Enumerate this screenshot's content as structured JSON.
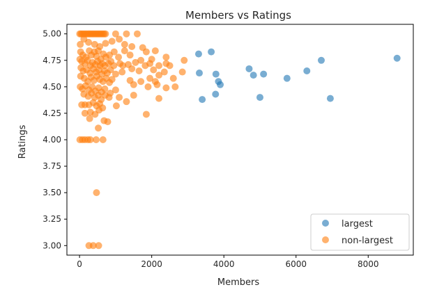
{
  "chart_data": {
    "type": "scatter",
    "title": "Members vs Ratings",
    "xlabel": "Members",
    "ylabel": "Ratings",
    "xlim": [
      -350,
      9250
    ],
    "ylim": [
      2.91,
      5.09
    ],
    "xticks": [
      0,
      2000,
      4000,
      6000,
      8000
    ],
    "xtick_labels": [
      "0",
      "2000",
      "4000",
      "6000",
      "8000"
    ],
    "yticks": [
      3.0,
      3.25,
      3.5,
      3.75,
      4.0,
      4.25,
      4.5,
      4.75,
      5.0
    ],
    "ytick_labels": [
      "3.00",
      "3.25",
      "3.50",
      "3.75",
      "4.00",
      "4.25",
      "4.50",
      "4.75",
      "5.00"
    ],
    "grid": false,
    "legend_position": "lower-right",
    "series": [
      {
        "name": "largest",
        "color": "#1f77b4",
        "alpha": 0.6,
        "points": [
          [
            3300,
            4.81
          ],
          [
            3320,
            4.63
          ],
          [
            3400,
            4.38
          ],
          [
            3650,
            4.83
          ],
          [
            3780,
            4.62
          ],
          [
            3770,
            4.43
          ],
          [
            3850,
            4.55
          ],
          [
            3900,
            4.52
          ],
          [
            4700,
            4.67
          ],
          [
            4820,
            4.61
          ],
          [
            5000,
            4.4
          ],
          [
            5100,
            4.62
          ],
          [
            5750,
            4.58
          ],
          [
            6300,
            4.65
          ],
          [
            6700,
            4.75
          ],
          [
            6950,
            4.39
          ],
          [
            8800,
            4.77
          ]
        ]
      },
      {
        "name": "non-largest",
        "color": "#ff7f0e",
        "alpha": 0.6,
        "points": [
          [
            5,
            5.0
          ],
          [
            40,
            5.0
          ],
          [
            80,
            5.0
          ],
          [
            120,
            5.0
          ],
          [
            160,
            5.0
          ],
          [
            200,
            5.0
          ],
          [
            240,
            5.0
          ],
          [
            280,
            5.0
          ],
          [
            320,
            5.0
          ],
          [
            360,
            5.0
          ],
          [
            400,
            5.0
          ],
          [
            440,
            5.0
          ],
          [
            480,
            5.0
          ],
          [
            520,
            5.0
          ],
          [
            560,
            5.0
          ],
          [
            600,
            5.0
          ],
          [
            640,
            5.0
          ],
          [
            680,
            5.0
          ],
          [
            720,
            5.0
          ],
          [
            1000,
            5.0
          ],
          [
            1300,
            5.0
          ],
          [
            1600,
            5.0
          ],
          [
            20,
            4.9
          ],
          [
            120,
            4.95
          ],
          [
            250,
            4.92
          ],
          [
            420,
            4.9
          ],
          [
            560,
            4.88
          ],
          [
            720,
            4.91
          ],
          [
            900,
            4.93
          ],
          [
            1100,
            4.95
          ],
          [
            1250,
            4.9
          ],
          [
            1450,
            4.88
          ],
          [
            1750,
            4.87
          ],
          [
            1850,
            4.83
          ],
          [
            2100,
            4.84
          ],
          [
            1250,
            4.84
          ],
          [
            30,
            4.83
          ],
          [
            90,
            4.8
          ],
          [
            180,
            4.78
          ],
          [
            270,
            4.84
          ],
          [
            330,
            4.8
          ],
          [
            410,
            4.83
          ],
          [
            470,
            4.79
          ],
          [
            520,
            4.84
          ],
          [
            590,
            4.76
          ],
          [
            660,
            4.81
          ],
          [
            730,
            4.78
          ],
          [
            830,
            4.8
          ],
          [
            960,
            4.83
          ],
          [
            1080,
            4.78
          ],
          [
            1400,
            4.8
          ],
          [
            1700,
            4.75
          ],
          [
            2000,
            4.76
          ],
          [
            2400,
            4.78
          ],
          [
            2900,
            4.75
          ],
          [
            10,
            4.76
          ],
          [
            60,
            4.74
          ],
          [
            150,
            4.72
          ],
          [
            220,
            4.75
          ],
          [
            300,
            4.7
          ],
          [
            360,
            4.73
          ],
          [
            440,
            4.71
          ],
          [
            500,
            4.74
          ],
          [
            570,
            4.7
          ],
          [
            630,
            4.72
          ],
          [
            700,
            4.7
          ],
          [
            800,
            4.72
          ],
          [
            870,
            4.74
          ],
          [
            950,
            4.7
          ],
          [
            1120,
            4.72
          ],
          [
            1200,
            4.7
          ],
          [
            1350,
            4.71
          ],
          [
            1550,
            4.73
          ],
          [
            1820,
            4.7
          ],
          [
            1950,
            4.72
          ],
          [
            2200,
            4.7
          ],
          [
            2400,
            4.72
          ],
          [
            2500,
            4.7
          ],
          [
            40,
            4.68
          ],
          [
            100,
            4.65
          ],
          [
            200,
            4.66
          ],
          [
            290,
            4.63
          ],
          [
            380,
            4.67
          ],
          [
            460,
            4.64
          ],
          [
            540,
            4.66
          ],
          [
            620,
            4.62
          ],
          [
            690,
            4.65
          ],
          [
            770,
            4.63
          ],
          [
            860,
            4.66
          ],
          [
            1000,
            4.62
          ],
          [
            1180,
            4.64
          ],
          [
            1450,
            4.67
          ],
          [
            1650,
            4.65
          ],
          [
            2050,
            4.66
          ],
          [
            2200,
            4.61
          ],
          [
            2350,
            4.64
          ],
          [
            2850,
            4.64
          ],
          [
            30,
            4.6
          ],
          [
            130,
            4.58
          ],
          [
            230,
            4.55
          ],
          [
            320,
            4.59
          ],
          [
            400,
            4.56
          ],
          [
            480,
            4.6
          ],
          [
            560,
            4.57
          ],
          [
            650,
            4.55
          ],
          [
            740,
            4.58
          ],
          [
            830,
            4.54
          ],
          [
            900,
            4.57
          ],
          [
            1400,
            4.56
          ],
          [
            1700,
            4.55
          ],
          [
            1950,
            4.58
          ],
          [
            2150,
            4.52
          ],
          [
            2600,
            4.58
          ],
          [
            20,
            4.5
          ],
          [
            80,
            4.48
          ],
          [
            170,
            4.51
          ],
          [
            260,
            4.47
          ],
          [
            350,
            4.5
          ],
          [
            440,
            4.46
          ],
          [
            530,
            4.49
          ],
          [
            610,
            4.45
          ],
          [
            700,
            4.48
          ],
          [
            850,
            4.44
          ],
          [
            1000,
            4.47
          ],
          [
            1500,
            4.52
          ],
          [
            1900,
            4.5
          ],
          [
            2100,
            4.55
          ],
          [
            2400,
            4.49
          ],
          [
            2650,
            4.5
          ],
          [
            120,
            4.43
          ],
          [
            240,
            4.41
          ],
          [
            330,
            4.44
          ],
          [
            420,
            4.4
          ],
          [
            520,
            4.42
          ],
          [
            600,
            4.38
          ],
          [
            710,
            4.42
          ],
          [
            820,
            4.4
          ],
          [
            1100,
            4.4
          ],
          [
            1500,
            4.42
          ],
          [
            2200,
            4.39
          ],
          [
            60,
            4.33
          ],
          [
            150,
            4.33
          ],
          [
            260,
            4.33
          ],
          [
            380,
            4.35
          ],
          [
            470,
            4.32
          ],
          [
            560,
            4.34
          ],
          [
            640,
            4.3
          ],
          [
            1020,
            4.32
          ],
          [
            1300,
            4.36
          ],
          [
            150,
            4.25
          ],
          [
            300,
            4.26
          ],
          [
            430,
            4.24
          ],
          [
            540,
            4.28
          ],
          [
            1850,
            4.24
          ],
          [
            280,
            4.2
          ],
          [
            680,
            4.18
          ],
          [
            780,
            4.17
          ],
          [
            520,
            4.11
          ],
          [
            10,
            4.0
          ],
          [
            80,
            4.0
          ],
          [
            150,
            4.0
          ],
          [
            230,
            4.0
          ],
          [
            300,
            4.0
          ],
          [
            460,
            4.0
          ],
          [
            650,
            4.0
          ],
          [
            470,
            3.5
          ],
          [
            260,
            3.0
          ],
          [
            380,
            3.0
          ],
          [
            530,
            3.0
          ]
        ]
      }
    ]
  }
}
